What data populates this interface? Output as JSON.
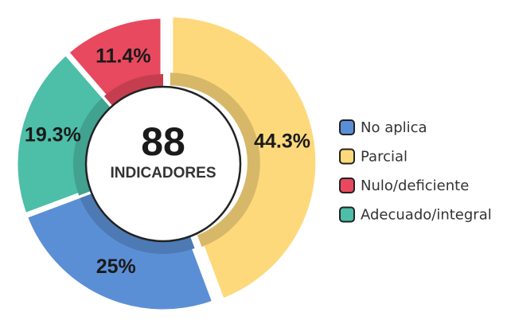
{
  "chart_data": {
    "type": "donut",
    "categories": [
      "No aplica",
      "Parcial",
      "Nulo/deficiente",
      "Adecuado/integral"
    ],
    "values": [
      25,
      44.3,
      11.4,
      19.3
    ],
    "value_labels": [
      "25%",
      "44.3%",
      "11.4%",
      "19.3%"
    ],
    "colors": [
      "#5b8fd5",
      "#fdd97c",
      "#e8495e",
      "#4dbea8"
    ],
    "center_value": 88,
    "center_text": "INDICADORES",
    "legend": "right"
  }
}
